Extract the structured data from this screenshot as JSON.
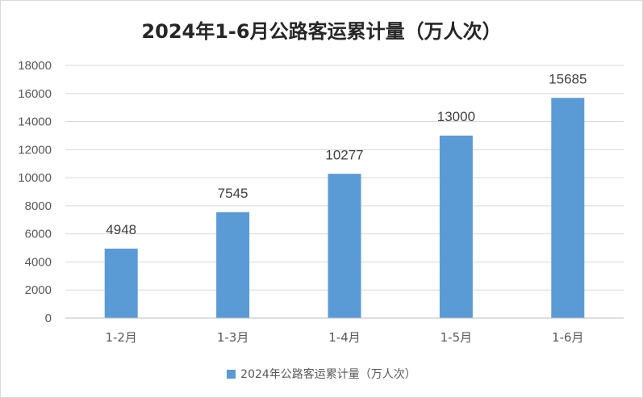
{
  "chart_data": {
    "type": "bar",
    "title": "2024年1-6月公路客运累计量（万人次）",
    "categories": [
      "1-2月",
      "1-3月",
      "1-4月",
      "1-5月",
      "1-6月"
    ],
    "series": [
      {
        "name": "2024年公路客运累计量（万人次）",
        "values": [
          4948,
          7545,
          10277,
          13000,
          15685
        ],
        "color": "#5b9bd5"
      }
    ],
    "ylim": [
      0,
      18000
    ],
    "yticks": [
      "0",
      "2000",
      "4000",
      "6000",
      "8000",
      "10000",
      "12000",
      "14000",
      "16000",
      "18000"
    ],
    "data_labels": [
      "4948",
      "7545",
      "10277",
      "13000",
      "15685"
    ],
    "grid": true,
    "legend_position": "bottom"
  }
}
